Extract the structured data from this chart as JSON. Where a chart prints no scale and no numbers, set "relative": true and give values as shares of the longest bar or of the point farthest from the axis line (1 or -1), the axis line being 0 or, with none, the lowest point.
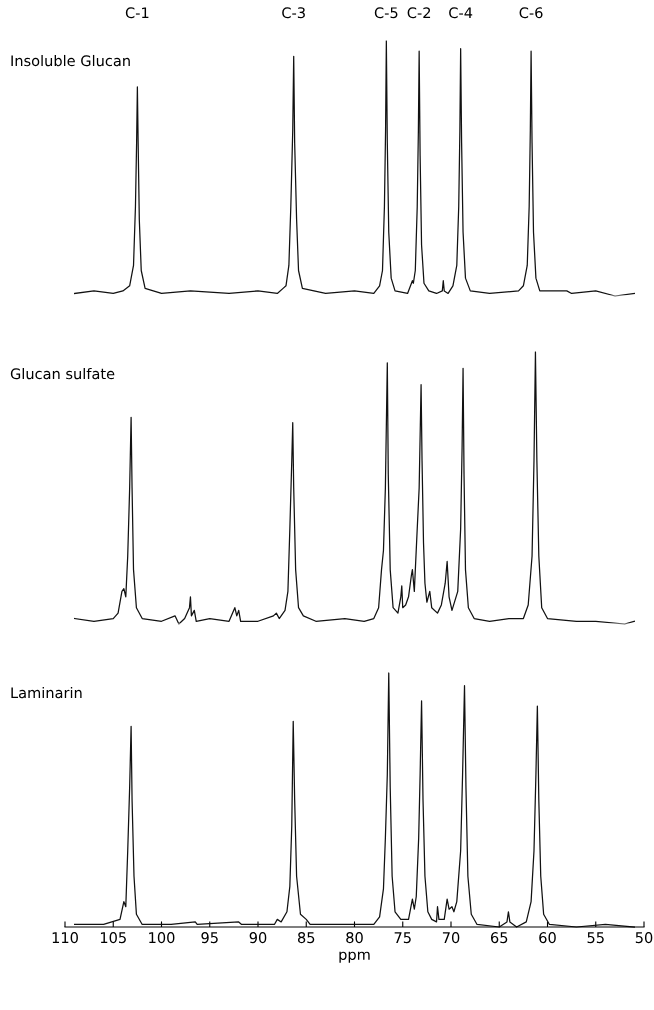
{
  "chart_data": [
    {
      "type": "line",
      "title": "Insoluble Glucan",
      "relative": true,
      "xlim": [
        110,
        50
      ],
      "xticks": [
        110,
        105,
        100,
        95,
        90,
        85,
        80,
        75,
        70,
        65,
        60,
        55,
        50
      ],
      "tick_labels": false,
      "annotations": [
        "C-1",
        "C-3",
        "C-5",
        "C-2",
        "C-4",
        "C-6"
      ],
      "series": [
        {
          "color": "#111111",
          "x": [
            109,
            107,
            105,
            104,
            103.3,
            102.9,
            102.7,
            102.58,
            102.5,
            102.42,
            102.3,
            102.1,
            101.7,
            100,
            97,
            93,
            90,
            88,
            87.4,
            87.1,
            86.8,
            86.6,
            86.4,
            86.3,
            86.2,
            86.0,
            85.8,
            85.4,
            83,
            80,
            78,
            77.4,
            77.1,
            76.9,
            76.78,
            76.7,
            76.6,
            76.45,
            76.2,
            75.8,
            74.5,
            74.0,
            73.9,
            73.7,
            73.5,
            73.38,
            73.3,
            73.2,
            73.05,
            72.8,
            72.3,
            71.5,
            70.9,
            70.8,
            70.7,
            70.3,
            69.8,
            69.4,
            69.2,
            69.08,
            69.0,
            68.9,
            68.75,
            68.5,
            68.0,
            66,
            63,
            62.5,
            62.1,
            61.9,
            61.78,
            61.7,
            61.6,
            61.45,
            61.2,
            60.8,
            58,
            57.5,
            55,
            53,
            51
          ],
          "values": [
            0.01,
            0.02,
            0.01,
            0.02,
            0.04,
            0.12,
            0.35,
            0.6,
            0.82,
            0.6,
            0.3,
            0.1,
            0.03,
            0.01,
            0.02,
            0.01,
            0.02,
            0.01,
            0.03,
            0.04,
            0.12,
            0.35,
            0.65,
            0.94,
            0.6,
            0.3,
            0.1,
            0.03,
            0.01,
            0.02,
            0.01,
            0.04,
            0.1,
            0.35,
            0.65,
            1.0,
            0.6,
            0.25,
            0.07,
            0.02,
            0.01,
            0.06,
            0.05,
            0.1,
            0.35,
            0.65,
            0.96,
            0.55,
            0.2,
            0.05,
            0.02,
            0.01,
            0.02,
            0.06,
            0.02,
            0.01,
            0.04,
            0.12,
            0.35,
            0.65,
            0.97,
            0.6,
            0.25,
            0.07,
            0.02,
            0.01,
            0.02,
            0.04,
            0.12,
            0.35,
            0.65,
            0.96,
            0.6,
            0.25,
            0.07,
            0.02,
            0.02,
            0.01,
            0.02,
            0.0,
            0.01
          ]
        }
      ]
    },
    {
      "type": "line",
      "title": "Glucan sulfate",
      "relative": true,
      "xlim": [
        110,
        50
      ],
      "xticks": [
        110,
        105,
        100,
        95,
        90,
        85,
        80,
        75,
        70,
        65,
        60,
        55,
        50
      ],
      "tick_labels": false,
      "series": [
        {
          "color": "#111111",
          "x": [
            109,
            107,
            105,
            104.5,
            104.1,
            103.9,
            103.7,
            103.5,
            103.3,
            103.15,
            103.05,
            102.9,
            102.6,
            102,
            100,
            98.6,
            98.2,
            97.6,
            97.1,
            97.0,
            96.9,
            96.6,
            96.4,
            95,
            93,
            92.4,
            92.2,
            92.0,
            91.8,
            90,
            88.4,
            88.1,
            87.8,
            87.2,
            86.9,
            86.7,
            86.5,
            86.4,
            86.3,
            86.1,
            85.8,
            85.3,
            84,
            81,
            79,
            78,
            77.5,
            77.2,
            77.0,
            76.8,
            76.6,
            76.5,
            76.3,
            76.0,
            75.5,
            75.2,
            75.1,
            75.0,
            74.7,
            74.4,
            74.1,
            74.0,
            73.8,
            73.5,
            73.3,
            73.1,
            73.0,
            72.85,
            72.7,
            72.5,
            72.2,
            72.0,
            71.4,
            71.0,
            70.6,
            70.4,
            70.2,
            69.9,
            69.3,
            69.0,
            68.85,
            68.75,
            68.65,
            68.5,
            68.2,
            67.6,
            66,
            64,
            62.5,
            62.0,
            61.6,
            61.4,
            61.25,
            61.1,
            60.9,
            60.6,
            60.0,
            57,
            55,
            52,
            51
          ],
          "values": [
            0.02,
            0.01,
            0.02,
            0.04,
            0.12,
            0.13,
            0.1,
            0.25,
            0.5,
            0.76,
            0.5,
            0.2,
            0.06,
            0.02,
            0.01,
            0.03,
            0.0,
            0.02,
            0.06,
            0.1,
            0.03,
            0.05,
            0.01,
            0.02,
            0.01,
            0.06,
            0.03,
            0.05,
            0.01,
            0.01,
            0.03,
            0.04,
            0.02,
            0.05,
            0.12,
            0.35,
            0.6,
            0.74,
            0.5,
            0.2,
            0.06,
            0.03,
            0.01,
            0.02,
            0.01,
            0.02,
            0.06,
            0.2,
            0.27,
            0.5,
            0.96,
            0.55,
            0.2,
            0.06,
            0.04,
            0.1,
            0.14,
            0.06,
            0.07,
            0.1,
            0.18,
            0.2,
            0.12,
            0.35,
            0.5,
            0.88,
            0.6,
            0.3,
            0.15,
            0.08,
            0.12,
            0.06,
            0.04,
            0.07,
            0.15,
            0.23,
            0.1,
            0.05,
            0.12,
            0.35,
            0.65,
            0.94,
            0.55,
            0.2,
            0.06,
            0.02,
            0.01,
            0.02,
            0.02,
            0.07,
            0.25,
            0.6,
            1.0,
            0.6,
            0.25,
            0.06,
            0.02,
            0.01,
            0.01,
            0.0,
            0.01
          ]
        }
      ]
    },
    {
      "type": "line",
      "title": "Laminarin",
      "xlabel": "ppm",
      "relative": true,
      "xlim": [
        110,
        50
      ],
      "xticks": [
        110,
        105,
        100,
        95,
        90,
        85,
        80,
        75,
        70,
        65,
        60,
        55,
        50
      ],
      "tick_labels": "x",
      "series": [
        {
          "color": "#111111",
          "x": [
            109,
            106,
            104.3,
            103.9,
            103.7,
            103.5,
            103.3,
            103.15,
            103.05,
            102.85,
            102.6,
            102,
            99,
            96.5,
            96.3,
            92,
            91.7,
            88.3,
            88.0,
            87.6,
            87.0,
            86.7,
            86.5,
            86.35,
            86.2,
            86.0,
            85.6,
            85.0,
            84.6,
            81,
            78,
            77.4,
            77.0,
            76.8,
            76.6,
            76.45,
            76.3,
            76.1,
            75.8,
            75.2,
            74.4,
            74.1,
            74.0,
            73.8,
            73.6,
            73.35,
            73.2,
            73.05,
            72.9,
            72.7,
            72.4,
            72.0,
            71.5,
            71.4,
            71.25,
            70.7,
            70.4,
            70.2,
            69.9,
            69.7,
            69.4,
            69.0,
            68.8,
            68.6,
            68.45,
            68.25,
            67.9,
            67.3,
            65,
            64.2,
            64.05,
            63.9,
            63.2,
            62.2,
            61.7,
            61.4,
            61.2,
            61.05,
            60.9,
            60.7,
            60.4,
            59.8,
            57,
            54,
            51
          ],
          "values": [
            0.01,
            0.01,
            0.03,
            0.1,
            0.08,
            0.3,
            0.55,
            0.79,
            0.5,
            0.2,
            0.05,
            0.01,
            0.01,
            0.02,
            0.01,
            0.02,
            0.01,
            0.01,
            0.03,
            0.02,
            0.06,
            0.16,
            0.4,
            0.81,
            0.5,
            0.2,
            0.05,
            0.03,
            0.01,
            0.01,
            0.01,
            0.04,
            0.15,
            0.35,
            0.6,
            1.0,
            0.55,
            0.2,
            0.06,
            0.03,
            0.03,
            0.09,
            0.11,
            0.07,
            0.12,
            0.35,
            0.6,
            0.89,
            0.5,
            0.2,
            0.06,
            0.03,
            0.02,
            0.08,
            0.03,
            0.03,
            0.11,
            0.07,
            0.08,
            0.06,
            0.1,
            0.3,
            0.6,
            0.95,
            0.55,
            0.2,
            0.05,
            0.01,
            0.0,
            0.02,
            0.06,
            0.02,
            0.0,
            0.02,
            0.1,
            0.3,
            0.6,
            0.87,
            0.5,
            0.2,
            0.05,
            0.01,
            0.0,
            0.01,
            0.0
          ]
        }
      ]
    }
  ]
}
